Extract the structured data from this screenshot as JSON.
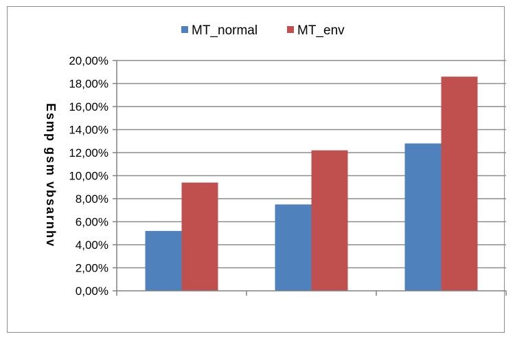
{
  "chart_data": {
    "type": "bar",
    "categories": [
      "",
      "",
      ""
    ],
    "series": [
      {
        "name": "MT_normal",
        "color": "#4f81bd",
        "values": [
          5.2,
          7.5,
          12.8
        ]
      },
      {
        "name": "MT_env",
        "color": "#c0504d",
        "values": [
          9.4,
          12.2,
          18.6
        ]
      }
    ],
    "title": "",
    "xlabel": "",
    "ylabel": "Esmp gsm vbsarnhv",
    "ylim": [
      0,
      20
    ],
    "yticks": [
      0,
      2,
      4,
      6,
      8,
      10,
      12,
      14,
      16,
      18,
      20
    ],
    "ytick_labels": [
      "0,00%",
      "2,00%",
      "4,00%",
      "6,00%",
      "8,00%",
      "10,00%",
      "12,00%",
      "14,00%",
      "16,00%",
      "18,00%",
      "20,00%"
    ],
    "grid": true,
    "legend_position": "top"
  }
}
